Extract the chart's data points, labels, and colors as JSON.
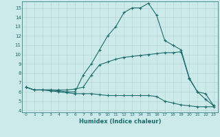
{
  "xlabel": "Humidex (Indice chaleur)",
  "xlim": [
    -0.5,
    23.5
  ],
  "ylim": [
    3.8,
    15.7
  ],
  "yticks": [
    4,
    5,
    6,
    7,
    8,
    9,
    10,
    11,
    12,
    13,
    14,
    15
  ],
  "xticks": [
    0,
    1,
    2,
    3,
    4,
    5,
    6,
    7,
    8,
    9,
    10,
    11,
    12,
    13,
    14,
    15,
    16,
    17,
    18,
    19,
    20,
    21,
    22,
    23
  ],
  "bg_color": "#cdeaea",
  "line_color": "#1a6b6b",
  "grid_color": "#b8d4d4",
  "lines": [
    {
      "x": [
        0,
        1,
        2,
        3,
        4,
        5,
        6,
        7,
        8,
        9,
        10,
        11,
        12,
        13,
        14,
        15,
        16,
        17,
        18,
        19,
        20,
        21,
        22,
        23
      ],
      "y": [
        6.5,
        6.2,
        6.2,
        6.2,
        6.1,
        6.0,
        6.0,
        7.8,
        9.0,
        10.5,
        12.0,
        13.0,
        14.5,
        15.0,
        15.0,
        15.5,
        14.2,
        11.5,
        11.0,
        10.5,
        7.5,
        6.0,
        5.2,
        4.5
      ]
    },
    {
      "x": [
        0,
        1,
        2,
        3,
        4,
        5,
        6,
        7,
        8,
        9,
        10,
        11,
        12,
        13,
        14,
        15,
        16,
        17,
        18,
        19,
        20,
        21,
        22,
        23
      ],
      "y": [
        6.5,
        6.2,
        6.2,
        6.1,
        6.0,
        5.9,
        5.8,
        5.8,
        5.8,
        5.7,
        5.6,
        5.6,
        5.6,
        5.6,
        5.6,
        5.6,
        5.5,
        5.0,
        4.8,
        4.6,
        4.5,
        4.4,
        4.4,
        4.4
      ]
    },
    {
      "x": [
        0,
        1,
        2,
        3,
        4,
        5,
        6,
        7,
        8,
        9,
        10,
        11,
        12,
        13,
        14,
        15,
        16,
        17,
        18,
        19,
        20,
        21,
        22,
        23
      ],
      "y": [
        6.5,
        6.2,
        6.2,
        6.2,
        6.2,
        6.2,
        6.3,
        6.5,
        7.8,
        8.9,
        9.2,
        9.5,
        9.7,
        9.8,
        9.9,
        10.0,
        10.1,
        10.2,
        10.2,
        10.3,
        7.4,
        6.0,
        5.8,
        4.5
      ]
    }
  ]
}
